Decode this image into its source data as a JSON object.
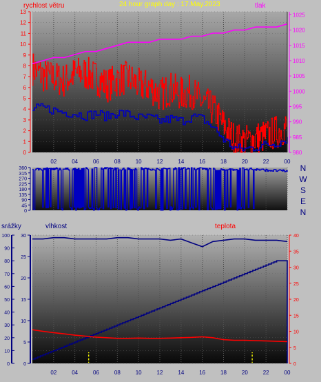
{
  "header": {
    "left_label": "rychlost větru",
    "title": "24 hour graph day : 17.May.2023",
    "right_label": "tlak"
  },
  "colors": {
    "background": "#c0c0c0",
    "wind": "#ff0000",
    "gust_avg": "#0000c0",
    "pressure": "#ff00ff",
    "title": "#ffff00",
    "humidity": "#000080",
    "temperature": "#ff0000",
    "rain": "#000080",
    "sun_marker": "#ffff00"
  },
  "bottom_labels": {
    "rain": "srážky",
    "humidity": "vlhkost",
    "temperature": "teplota"
  },
  "compass": [
    "N",
    "W",
    "S",
    "E",
    "N"
  ],
  "x_ticks": [
    "02",
    "04",
    "06",
    "08",
    "10",
    "12",
    "14",
    "16",
    "18",
    "20",
    "22",
    "00"
  ],
  "chart_data": [
    {
      "type": "line",
      "title": "24 hour graph day : 17.May.2023",
      "xlabel": "",
      "x_ticks": [
        "02",
        "04",
        "06",
        "08",
        "10",
        "12",
        "14",
        "16",
        "18",
        "20",
        "22",
        "00"
      ],
      "y_left": {
        "label": "rychlost větru",
        "ylim": [
          0,
          13
        ],
        "ticks": [
          0,
          1,
          2,
          3,
          4,
          5,
          6,
          7,
          8,
          9,
          10,
          11,
          12,
          13
        ]
      },
      "y_right": {
        "label": "tlak",
        "ylim": [
          980,
          1026
        ],
        "ticks": [
          980,
          985,
          990,
          995,
          1000,
          1005,
          1010,
          1015,
          1020,
          1025
        ]
      },
      "x_hours": [
        0,
        1,
        2,
        3,
        4,
        5,
        6,
        7,
        8,
        9,
        10,
        11,
        12,
        13,
        14,
        15,
        16,
        17,
        18,
        19,
        20,
        21,
        22,
        23,
        24
      ],
      "series": [
        {
          "name": "rychlost větru",
          "axis": "left",
          "values": [
            7.8,
            7.1,
            6.9,
            6.6,
            7.3,
            7.3,
            6.9,
            6.2,
            6.7,
            6.9,
            6.2,
            6.1,
            5.3,
            5.9,
            5.4,
            5.6,
            4.6,
            4.0,
            2.5,
            1.2,
            1.0,
            1.3,
            1.5,
            1.9,
            2.4
          ]
        },
        {
          "name": "",
          "axis": "left",
          "values": [
            4.0,
            4.1,
            3.9,
            3.7,
            3.6,
            3.4,
            3.6,
            3.3,
            3.7,
            3.5,
            3.2,
            3.2,
            2.9,
            3.1,
            2.9,
            3.3,
            3.1,
            2.3,
            1.2,
            0.4,
            0.3,
            0.5,
            0.7,
            0.9,
            1.3
          ]
        },
        {
          "name": "tlak",
          "axis": "right",
          "values": [
            1009,
            1010,
            1011,
            1011,
            1012,
            1013,
            1013,
            1014,
            1015,
            1016,
            1016,
            1016,
            1017,
            1017,
            1017,
            1018,
            1018,
            1019,
            1019,
            1020,
            1020,
            1021,
            1021,
            1021,
            1022
          ]
        }
      ]
    },
    {
      "type": "line",
      "title": "",
      "x_ticks": [
        "02",
        "04",
        "06",
        "08",
        "10",
        "12",
        "14",
        "16",
        "18",
        "20",
        "22",
        "00"
      ],
      "ylim": [
        0,
        360
      ],
      "y_ticks": [
        0,
        45,
        90,
        135,
        180,
        225,
        270,
        315,
        360
      ],
      "y_right_labels": [
        "N",
        "W",
        "S",
        "E",
        "N"
      ],
      "x_hours": [
        0,
        2,
        4,
        6,
        8,
        10,
        12,
        14,
        16,
        18,
        20,
        22,
        24
      ],
      "series": [
        {
          "name": "",
          "values": [
            345,
            350,
            345,
            355,
            348,
            352,
            345,
            355,
            350,
            340,
            350,
            338,
            330
          ]
        }
      ]
    },
    {
      "type": "line",
      "title": "",
      "x_ticks": [
        "02",
        "04",
        "06",
        "08",
        "10",
        "12",
        "14",
        "16",
        "18",
        "20",
        "22",
        "00"
      ],
      "y_left_outer": {
        "label": "srážky",
        "ylim": [
          0,
          100
        ],
        "ticks": [
          0,
          10,
          20,
          30,
          40,
          50,
          60,
          70,
          80,
          90,
          100
        ]
      },
      "y_left_inner": {
        "label": "vlhkost",
        "ylim": [
          0,
          30
        ],
        "ticks": [
          0,
          5,
          10,
          15,
          20,
          25,
          30
        ]
      },
      "y_right": {
        "label": "teplota",
        "ylim": [
          0,
          40
        ],
        "ticks": [
          0,
          5,
          10,
          15,
          20,
          25,
          30,
          35,
          40
        ]
      },
      "x_hours": [
        0,
        1,
        2,
        3,
        4,
        5,
        6,
        7,
        8,
        9,
        10,
        11,
        12,
        13,
        14,
        15,
        16,
        17,
        18,
        19,
        20,
        21,
        22,
        23,
        24
      ],
      "series": [
        {
          "name": "vlhkost",
          "axis": "left_outer",
          "values": [
            97,
            97,
            98,
            98,
            97,
            97,
            97,
            97,
            98,
            98,
            97,
            97,
            97,
            96,
            97,
            94,
            91,
            95,
            96,
            97,
            97,
            96,
            96,
            96,
            95
          ]
        },
        {
          "name": "srážky",
          "axis": "left_inner",
          "values": [
            1,
            2,
            3,
            4,
            5,
            6,
            7,
            8,
            9,
            10,
            11,
            12,
            13,
            14,
            15,
            16,
            17,
            18,
            19,
            20,
            21,
            22,
            23,
            24,
            24
          ]
        },
        {
          "name": "teplota",
          "axis": "right",
          "values": [
            10.5,
            10.0,
            9.6,
            9.2,
            8.8,
            8.5,
            8.2,
            8.0,
            7.8,
            7.8,
            7.9,
            7.8,
            7.8,
            7.9,
            8.0,
            8.1,
            8.3,
            8.0,
            7.4,
            7.2,
            7.2,
            7.1,
            7.0,
            6.9,
            6.8
          ]
        }
      ],
      "markers_hours": [
        5.3,
        20.7
      ]
    }
  ]
}
